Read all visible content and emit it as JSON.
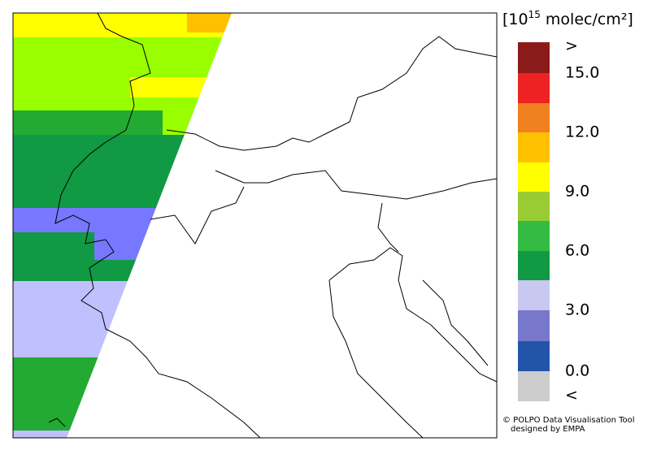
{
  "legend": {
    "title": {
      "prefix": "[10",
      "exponent": "15",
      "unit": " molec/cm²]"
    },
    "labels": [
      ">",
      "15.0",
      "12.0",
      "9.0",
      "6.0",
      "3.0",
      "0.0",
      "<"
    ]
  },
  "footer": {
    "line1": "© POLPO Data Visualisation Tool",
    "line2": "designed by EMPA"
  }
}
